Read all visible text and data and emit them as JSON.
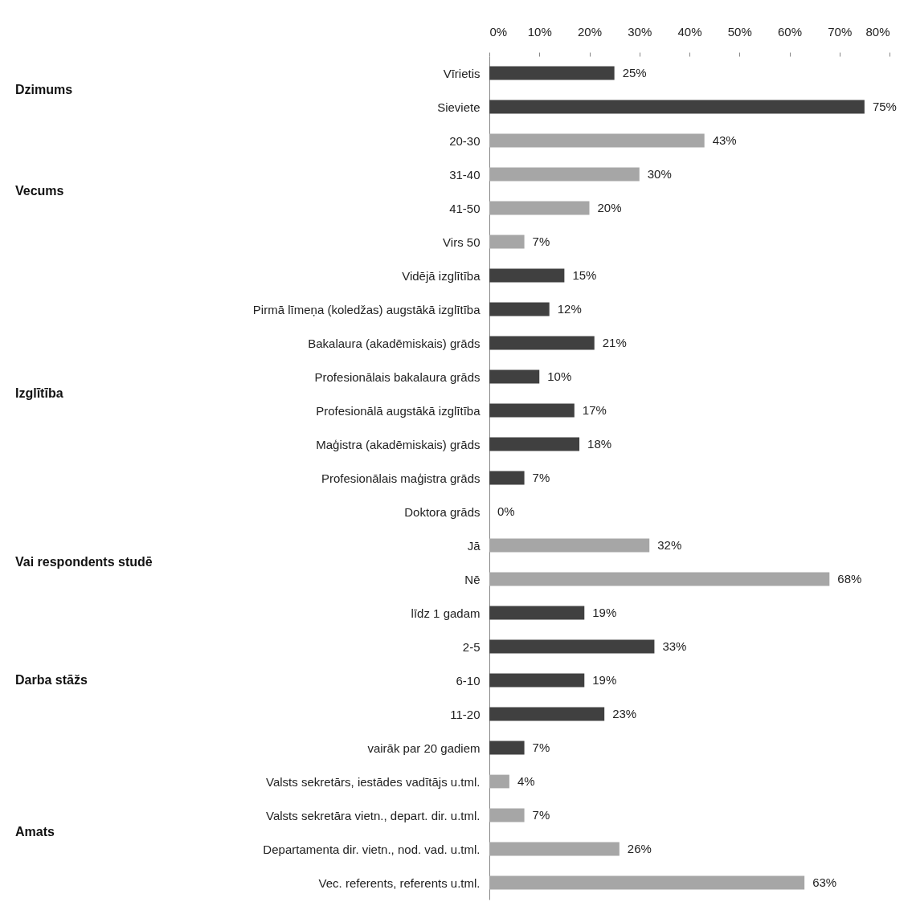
{
  "chart_data": {
    "type": "bar",
    "orientation": "horizontal",
    "categories": [
      "Vīrietis",
      "Sieviete",
      "20-30",
      "31-40",
      "41-50",
      "Virs 50",
      "Vidējā izglītība",
      "Pirmā līmeņa (koledžas) augstākā izglītība",
      "Bakalaura (akadēmiskais) grāds",
      "Profesionālais bakalaura grāds",
      "Profesionālā augstākā izglītība",
      "Maģistra (akadēmiskais) grāds",
      "Profesionālais maģistra grāds",
      "Doktora grāds",
      "Jā",
      "Nē",
      "līdz 1 gadam",
      "2-5",
      "6-10",
      "11-20",
      "vairāk par 20 gadiem",
      "Valsts sekretārs, iestādes vadītājs u.tml.",
      "Valsts sekretāra vietn., depart. dir. u.tml.",
      "Departamenta dir. vietn., nod. vad. u.tml.",
      "Vec. referents, referents u.tml."
    ],
    "series": [
      {
        "color": "#404040",
        "values": [
          25,
          75,
          null,
          null,
          null,
          null,
          null,
          null,
          null,
          null,
          null,
          null,
          null,
          null,
          null,
          null,
          null,
          null,
          null,
          null,
          null,
          null,
          null,
          null,
          null
        ],
        "value_labels": [
          "25%",
          "75%",
          null,
          null,
          null,
          null,
          null,
          null,
          null,
          null,
          null,
          null,
          null,
          null,
          null,
          null,
          null,
          null,
          null,
          null,
          null,
          null,
          null,
          null,
          null
        ]
      },
      {
        "color": "#a6a6a6",
        "values": [
          null,
          null,
          43,
          30,
          20,
          7,
          null,
          null,
          null,
          null,
          null,
          null,
          null,
          null,
          null,
          null,
          null,
          null,
          null,
          null,
          null,
          null,
          null,
          null,
          null
        ],
        "value_labels": [
          null,
          null,
          "43%",
          "30%",
          "20%",
          "7%",
          null,
          null,
          null,
          null,
          null,
          null,
          null,
          null,
          null,
          null,
          null,
          null,
          null,
          null,
          null,
          null,
          null,
          null,
          null
        ]
      },
      {
        "color": "#404040",
        "values": [
          null,
          null,
          null,
          null,
          null,
          null,
          15,
          12,
          21,
          10,
          17,
          18,
          7,
          0,
          null,
          null,
          null,
          null,
          null,
          null,
          null,
          null,
          null,
          null,
          null
        ],
        "value_labels": [
          null,
          null,
          null,
          null,
          null,
          null,
          "15%",
          "12%",
          "21%",
          "10%",
          "17%",
          "18%",
          "7%",
          "0%",
          null,
          null,
          null,
          null,
          null,
          null,
          null,
          null,
          null,
          null,
          null
        ]
      },
      {
        "color": "#a6a6a6",
        "values": [
          null,
          null,
          null,
          null,
          null,
          null,
          null,
          null,
          null,
          null,
          null,
          null,
          null,
          null,
          32,
          68,
          null,
          null,
          null,
          null,
          null,
          null,
          null,
          null,
          null
        ],
        "value_labels": [
          null,
          null,
          null,
          null,
          null,
          null,
          null,
          null,
          null,
          null,
          null,
          null,
          null,
          null,
          "32%",
          "68%",
          null,
          null,
          null,
          null,
          null,
          null,
          null,
          null,
          null
        ]
      },
      {
        "color": "#404040",
        "values": [
          null,
          null,
          null,
          null,
          null,
          null,
          null,
          null,
          null,
          null,
          null,
          null,
          null,
          null,
          null,
          null,
          19,
          33,
          19,
          23,
          7,
          null,
          null,
          null,
          null
        ],
        "value_labels": [
          null,
          null,
          null,
          null,
          null,
          null,
          null,
          null,
          null,
          null,
          null,
          null,
          null,
          null,
          null,
          null,
          "19%",
          "33%",
          "19%",
          "23%",
          "7%",
          null,
          null,
          null,
          null
        ]
      },
      {
        "color": "#a6a6a6",
        "values": [
          null,
          null,
          null,
          null,
          null,
          null,
          null,
          null,
          null,
          null,
          null,
          null,
          null,
          null,
          null,
          null,
          null,
          null,
          null,
          null,
          null,
          4,
          7,
          26,
          63
        ],
        "value_labels": [
          null,
          null,
          null,
          null,
          null,
          null,
          null,
          null,
          null,
          null,
          null,
          null,
          null,
          null,
          null,
          null,
          null,
          null,
          null,
          null,
          null,
          "4%",
          "7%",
          "26%",
          "63%"
        ]
      }
    ],
    "annotations": [
      "Dzimums",
      "Vecums",
      "Izglītība",
      "Vai respondents studē",
      "Darba stāžs",
      "Amats"
    ],
    "xlim": [
      0,
      80
    ],
    "xticks": [
      {
        "value": 0,
        "label": "0%"
      },
      {
        "value": 10,
        "label": "10%"
      },
      {
        "value": 20,
        "label": "20%"
      },
      {
        "value": 30,
        "label": "30%"
      },
      {
        "value": 40,
        "label": "40%"
      },
      {
        "value": 50,
        "label": "50%"
      },
      {
        "value": 60,
        "label": "60%"
      },
      {
        "value": 70,
        "label": "70%"
      },
      {
        "value": 80,
        "label": "80%"
      }
    ]
  }
}
